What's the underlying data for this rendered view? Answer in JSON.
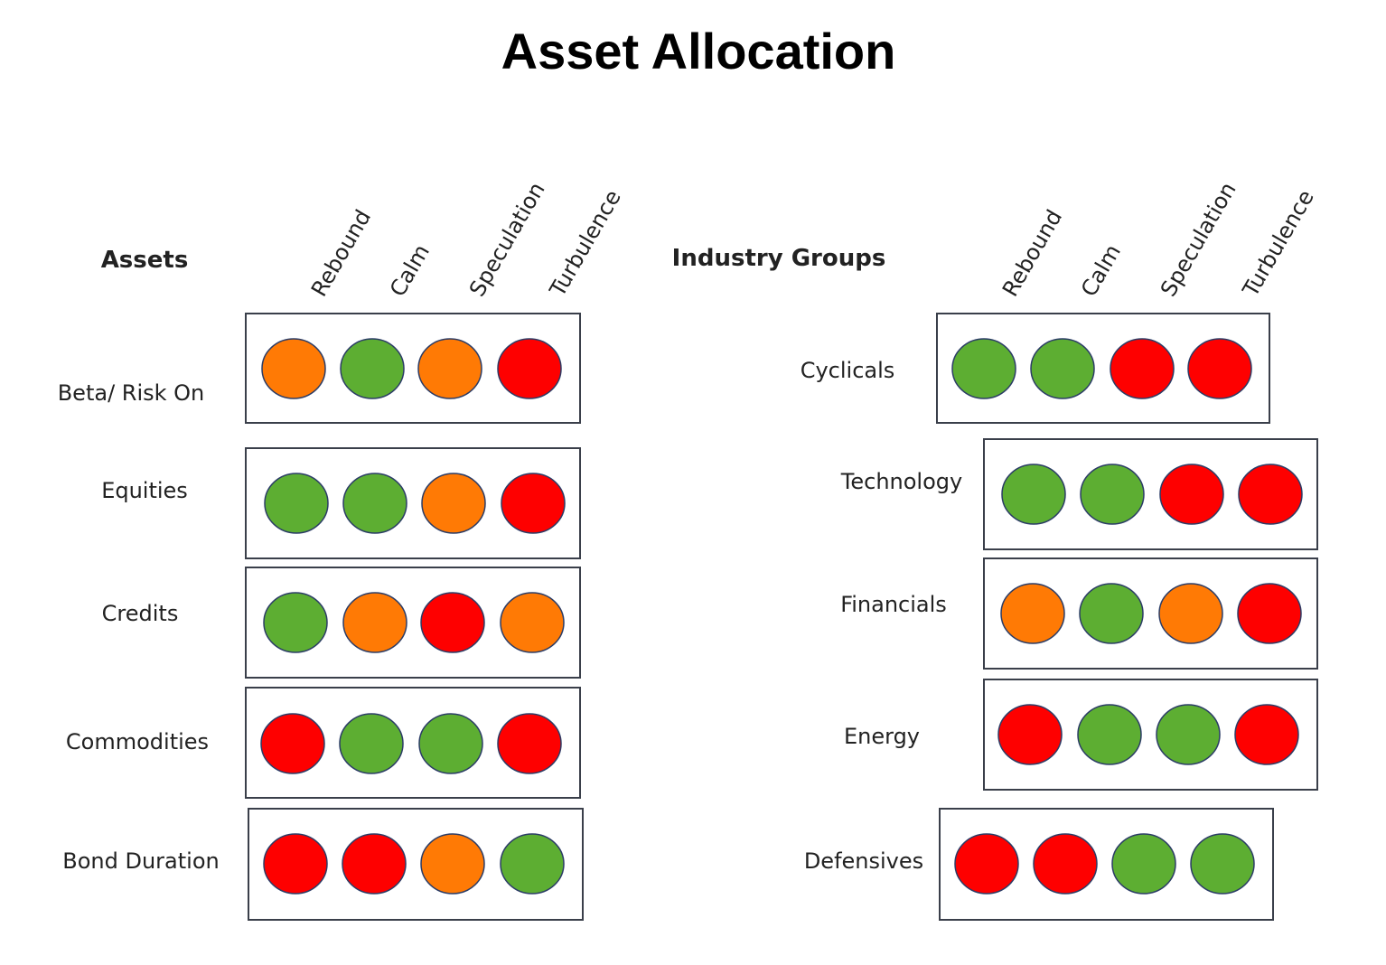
{
  "title": "Asset Allocation",
  "colors": {
    "green": "#5dae32",
    "orange": "#ff7a05",
    "red": "#fe0000",
    "outline": "#2b3c66"
  },
  "panels": [
    {
      "heading": "Assets",
      "columns": [
        "Rebound",
        "Calm",
        "Speculation",
        "Turbulence"
      ],
      "rows": [
        {
          "label": "Beta/ Risk On",
          "signals": [
            "orange",
            "green",
            "orange",
            "red"
          ]
        },
        {
          "label": "Equities",
          "signals": [
            "green",
            "green",
            "orange",
            "red"
          ]
        },
        {
          "label": "Credits",
          "signals": [
            "green",
            "orange",
            "red",
            "orange"
          ]
        },
        {
          "label": "Commodities",
          "signals": [
            "red",
            "green",
            "green",
            "red"
          ]
        },
        {
          "label": "Bond Duration",
          "signals": [
            "red",
            "red",
            "orange",
            "green"
          ]
        }
      ]
    },
    {
      "heading": "Industry Groups",
      "columns": [
        "Rebound",
        "Calm",
        "Speculation",
        "Turbulence"
      ],
      "rows": [
        {
          "label": "Cyclicals",
          "signals": [
            "green",
            "green",
            "red",
            "red"
          ]
        },
        {
          "label": "Technology",
          "signals": [
            "green",
            "green",
            "red",
            "red"
          ]
        },
        {
          "label": "Financials",
          "signals": [
            "orange",
            "green",
            "orange",
            "red"
          ]
        },
        {
          "label": "Energy",
          "signals": [
            "red",
            "green",
            "green",
            "red"
          ]
        },
        {
          "label": "Defensives",
          "signals": [
            "red",
            "red",
            "green",
            "green"
          ]
        }
      ]
    }
  ]
}
